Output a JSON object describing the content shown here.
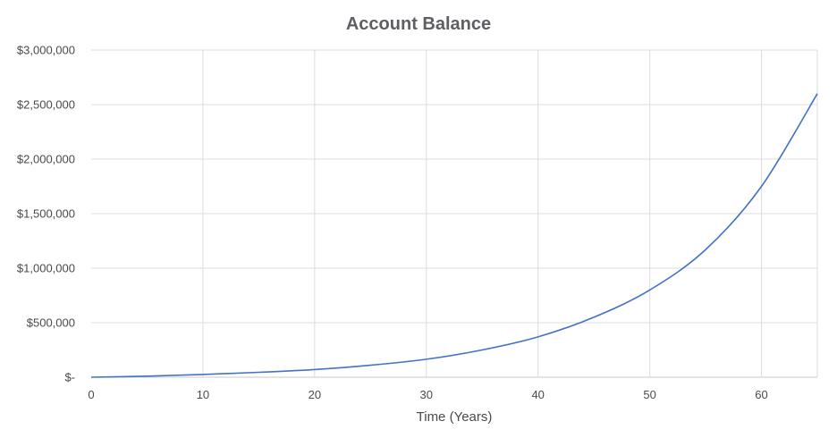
{
  "chart_data": {
    "type": "line",
    "title": "Account Balance",
    "xlabel": "Time (Years)",
    "ylabel": "",
    "xlim": [
      0,
      65
    ],
    "ylim": [
      0,
      3000000
    ],
    "x_ticks": [
      0,
      10,
      20,
      30,
      40,
      50,
      60
    ],
    "x_tick_labels": [
      "0",
      "10",
      "20",
      "30",
      "40",
      "50",
      "60"
    ],
    "y_ticks": [
      0,
      500000,
      1000000,
      1500000,
      2000000,
      2500000,
      3000000
    ],
    "y_tick_labels": [
      "$-",
      "$500,000",
      "$1,000,000",
      "$1,500,000",
      "$2,000,000",
      "$2,500,000",
      "$3,000,000"
    ],
    "grid": true,
    "legend": "none",
    "series": [
      {
        "color": "#4472c4",
        "x": [
          0,
          5,
          10,
          15,
          20,
          25,
          30,
          35,
          40,
          45,
          50,
          55,
          60,
          65
        ],
        "y": [
          0,
          10000,
          25000,
          45000,
          70000,
          110000,
          165000,
          250000,
          370000,
          550000,
          800000,
          1170000,
          1750000,
          2600000
        ]
      }
    ]
  }
}
